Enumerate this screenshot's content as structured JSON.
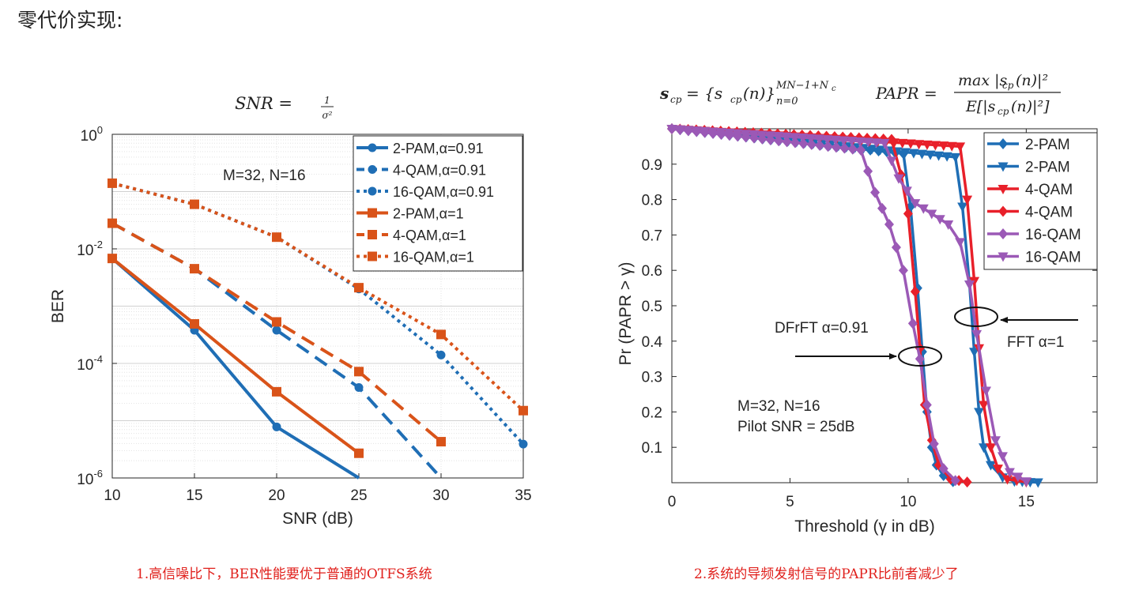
{
  "page": {
    "heading": "零代价实现:",
    "caption_left": "1.高信噪比下，BER性能要优于普通的OTFS系统",
    "caption_right": "2.系统的导频发射信号的PAPR比前者减少了"
  },
  "chart_data": [
    {
      "type": "line",
      "title": "SNR = 1/σ²",
      "xlabel": "SNR (dB)",
      "ylabel": "BER",
      "xscale": "linear",
      "yscale": "log",
      "xlim": [
        10,
        35
      ],
      "ylim": [
        1e-06,
        1
      ],
      "xticks": [
        "10",
        "15",
        "20",
        "25",
        "30",
        "35"
      ],
      "yticks": [
        {
          "base": "10",
          "exp": "0"
        },
        {
          "base": "10",
          "exp": "-2"
        },
        {
          "base": "10",
          "exp": "-4"
        },
        {
          "base": "10",
          "exp": "-6"
        }
      ],
      "grid": true,
      "legend_position": "top-right",
      "annotations": [
        "M=32, N=16"
      ],
      "series": [
        {
          "name": "2-PAM,α=0.91",
          "color": "#1f6eb5",
          "dash": "solid",
          "marker": "circle",
          "x": [
            10,
            15,
            20,
            25
          ],
          "y": [
            0.0068,
            0.00038,
            7.8e-06,
            9e-07
          ]
        },
        {
          "name": "4-QAM,α=0.91",
          "color": "#1f6eb5",
          "dash": "dashed",
          "marker": "circle",
          "x": [
            10,
            15,
            20,
            25,
            30
          ],
          "y": [
            0.028,
            0.0045,
            0.00038,
            3.8e-05,
            9e-07
          ]
        },
        {
          "name": "16-QAM,α=0.91",
          "color": "#1f6eb5",
          "dash": "dotted",
          "marker": "circle",
          "x": [
            10,
            15,
            20,
            25,
            30,
            35
          ],
          "y": [
            0.14,
            0.06,
            0.016,
            0.002,
            0.00014,
            3.9e-06
          ]
        },
        {
          "name": "2-PAM,α=1",
          "color": "#d95319",
          "dash": "solid",
          "marker": "square",
          "x": [
            10,
            15,
            20,
            25
          ],
          "y": [
            0.0068,
            0.00049,
            3.2e-05,
            2.7e-06
          ]
        },
        {
          "name": "4-QAM,α=1",
          "color": "#d95319",
          "dash": "dashed",
          "marker": "square",
          "x": [
            10,
            15,
            20,
            25,
            30
          ],
          "y": [
            0.028,
            0.0045,
            0.00053,
            7.2e-05,
            4.3e-06
          ]
        },
        {
          "name": "16-QAM,α=1",
          "color": "#d95319",
          "dash": "dotted",
          "marker": "square",
          "x": [
            10,
            15,
            20,
            25,
            30,
            35
          ],
          "y": [
            0.14,
            0.06,
            0.016,
            0.0021,
            0.00032,
            1.5e-05
          ]
        }
      ]
    },
    {
      "type": "line",
      "title": "s_cp = {s_cp(n)}_{n=0}^{MN-1+N_c}    PAPR = max|s_cp(n)|² / E[|s_cp(n)|²]",
      "xlabel": "Threshold (γ in dB)",
      "ylabel": "Pr (PAPR > γ)",
      "xscale": "linear",
      "yscale": "linear",
      "xlim": [
        0,
        18
      ],
      "ylim": [
        0,
        1
      ],
      "xticks": [
        "0",
        "5",
        "10",
        "15"
      ],
      "yticks": [
        "0.1",
        "0.2",
        "0.3",
        "0.4",
        "0.5",
        "0.6",
        "0.7",
        "0.8",
        "0.9"
      ],
      "grid": false,
      "legend_position": "top-right",
      "annotations": [
        "DFrFT α=0.91",
        "FFT α=1",
        "M=32, N=16",
        "Pilot SNR = 25dB"
      ],
      "series": [
        {
          "name": "2-PAM",
          "color": "#1f6eb5",
          "marker": "diamond",
          "x": [
            0,
            9.8,
            10.1,
            10.4,
            10.6,
            10.8,
            11.0,
            11.2,
            11.5,
            11.9
          ],
          "y": [
            1,
            0.93,
            0.78,
            0.55,
            0.37,
            0.2,
            0.1,
            0.05,
            0.02,
            0.003
          ]
        },
        {
          "name": "2-PAM",
          "color": "#1f6eb5",
          "marker": "triangle-down",
          "x": [
            0,
            12.0,
            12.3,
            12.6,
            12.8,
            13.0,
            13.2,
            13.5,
            14.0,
            14.5,
            15.5
          ],
          "y": [
            1,
            0.92,
            0.78,
            0.56,
            0.37,
            0.2,
            0.1,
            0.05,
            0.015,
            0.004,
            0.001
          ]
        },
        {
          "name": "4-QAM",
          "color": "#e8202a",
          "marker": "triangle-down",
          "x": [
            0,
            12.2,
            12.5,
            12.8,
            13.0,
            13.2,
            13.5,
            13.8,
            14.2,
            15.0
          ],
          "y": [
            1,
            0.95,
            0.8,
            0.57,
            0.38,
            0.22,
            0.1,
            0.04,
            0.01,
            0.002
          ]
        },
        {
          "name": "4-QAM",
          "color": "#e8202a",
          "marker": "diamond",
          "x": [
            0,
            9.3,
            9.7,
            10.0,
            10.3,
            10.5,
            10.7,
            11.0,
            11.3,
            11.8,
            12.5
          ],
          "y": [
            1,
            0.97,
            0.87,
            0.76,
            0.54,
            0.38,
            0.22,
            0.12,
            0.05,
            0.01,
            0.002
          ]
        },
        {
          "name": "16-QAM",
          "color": "#9b59b6",
          "marker": "diamond",
          "x": [
            0,
            8.0,
            8.6,
            9.2,
            9.8,
            10.2,
            10.5,
            10.8,
            11.1,
            11.5,
            12.0
          ],
          "y": [
            1,
            0.94,
            0.82,
            0.73,
            0.6,
            0.45,
            0.35,
            0.22,
            0.11,
            0.04,
            0.006
          ]
        },
        {
          "name": "16-QAM",
          "color": "#9b59b6",
          "marker": "triangle-down",
          "x": [
            0,
            9.0,
            9.6,
            10.3,
            11.0,
            11.7,
            12.2,
            12.6,
            12.9,
            13.3,
            13.7,
            14.3,
            15.0
          ],
          "y": [
            1,
            0.96,
            0.86,
            0.79,
            0.76,
            0.73,
            0.68,
            0.56,
            0.42,
            0.26,
            0.12,
            0.03,
            0.004
          ]
        }
      ]
    }
  ]
}
